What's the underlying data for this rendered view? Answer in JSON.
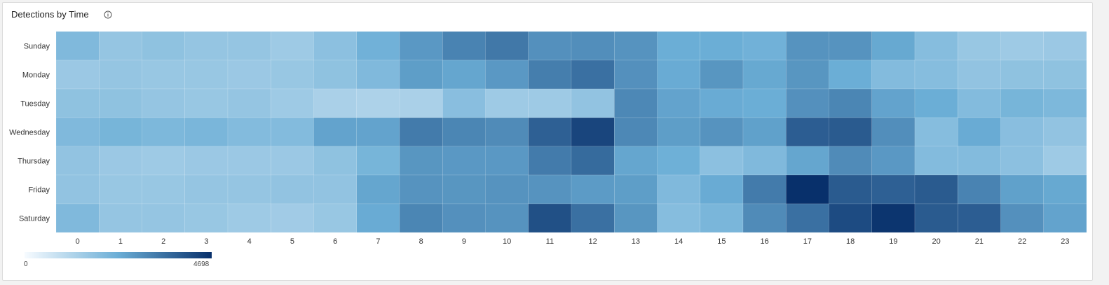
{
  "panel": {
    "title": "Detections by Time",
    "info_icon": "info-circle-icon"
  },
  "colors": {
    "scale_low": "#f7fbff",
    "scale_mid": "#6baed6",
    "scale_high": "#08306b",
    "grid_line": "#ffffff"
  },
  "chart_data": {
    "type": "heatmap",
    "title": "Detections by Time",
    "y_categories": [
      "Sunday",
      "Monday",
      "Tuesday",
      "Wednesday",
      "Thursday",
      "Friday",
      "Saturday"
    ],
    "x_categories": [
      "0",
      "1",
      "2",
      "3",
      "4",
      "5",
      "6",
      "7",
      "8",
      "9",
      "10",
      "11",
      "12",
      "13",
      "14",
      "15",
      "16",
      "17",
      "18",
      "19",
      "20",
      "21",
      "22",
      "23"
    ],
    "color_range": [
      0,
      4698
    ],
    "values": [
      [
        2000,
        1650,
        1750,
        1650,
        1650,
        1500,
        1800,
        2250,
        2750,
        3150,
        3350,
        2900,
        2950,
        2850,
        2350,
        2350,
        2250,
        2850,
        2850,
        2450,
        1900,
        1600,
        1500,
        1550
      ],
      [
        1550,
        1650,
        1600,
        1600,
        1550,
        1600,
        1750,
        2000,
        2650,
        2500,
        2750,
        3250,
        3500,
        2900,
        2400,
        2800,
        2450,
        2800,
        2350,
        1950,
        1900,
        1700,
        1750,
        1750
      ],
      [
        1750,
        1750,
        1650,
        1600,
        1650,
        1500,
        1300,
        1250,
        1300,
        1850,
        1500,
        1500,
        1700,
        3050,
        2550,
        2400,
        2350,
        2900,
        3100,
        2550,
        2350,
        1950,
        2150,
        2050
      ],
      [
        2000,
        2150,
        2050,
        2100,
        1950,
        1950,
        2550,
        2550,
        3300,
        3100,
        3000,
        3800,
        4300,
        3050,
        2650,
        2850,
        2600,
        3850,
        3900,
        2950,
        1900,
        2400,
        1850,
        1700
      ],
      [
        1700,
        1550,
        1500,
        1550,
        1550,
        1550,
        1750,
        2150,
        2800,
        2750,
        2750,
        3300,
        3600,
        2500,
        2300,
        1800,
        2000,
        2500,
        3000,
        2750,
        1950,
        1950,
        1800,
        1500
      ],
      [
        1700,
        1600,
        1600,
        1650,
        1650,
        1700,
        1700,
        2500,
        2850,
        2800,
        2850,
        2850,
        2700,
        2650,
        2000,
        2400,
        3300,
        4698,
        3900,
        3800,
        3900,
        3150,
        2600,
        2450
      ],
      [
        2000,
        1650,
        1650,
        1600,
        1500,
        1450,
        1600,
        2400,
        3100,
        2900,
        2850,
        4100,
        3500,
        2800,
        1900,
        2100,
        3000,
        3500,
        4200,
        4600,
        3900,
        3850,
        2900,
        2550
      ]
    ],
    "xlabel": "",
    "ylabel": "",
    "legend": {
      "position": "bottom-left",
      "min_label": "0",
      "max_label": "4698"
    }
  }
}
